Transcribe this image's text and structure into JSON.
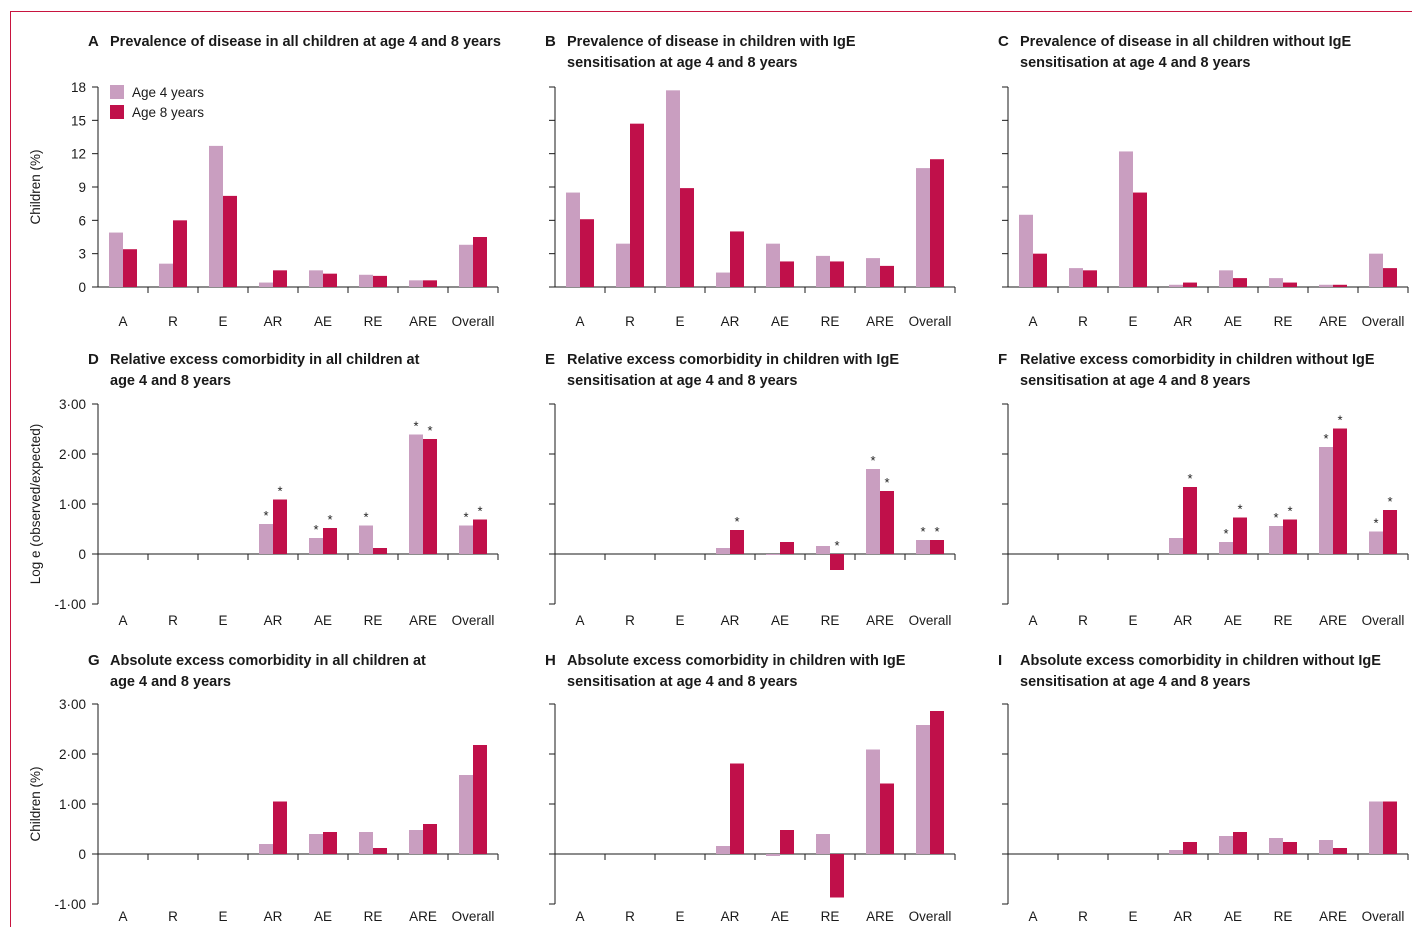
{
  "figure": {
    "colors": {
      "age4": "#c99ec0",
      "age8": "#c0104a",
      "accent_line": "#c8143f"
    },
    "categories": [
      "A",
      "R",
      "E",
      "AR",
      "AE",
      "RE",
      "ARE",
      "Overall"
    ],
    "legend": [
      "Age 4 years",
      "Age 8 years"
    ]
  },
  "chart_data": [
    {
      "type": "bar",
      "letter": "A",
      "title": [
        "Prevalence of disease in all children at age 4 and 8 years"
      ],
      "ylabel": "Children (%)",
      "ylim": [
        0,
        18
      ],
      "yticks": [
        0,
        3,
        6,
        9,
        12,
        15,
        18
      ],
      "ytick_labels": [
        "0",
        "3",
        "6",
        "9",
        "12",
        "15",
        "18"
      ],
      "show_legend": true,
      "categories": [
        "A",
        "R",
        "E",
        "AR",
        "AE",
        "RE",
        "ARE",
        "Overall"
      ],
      "series": [
        {
          "name": "Age 4 years",
          "values": [
            4.9,
            2.1,
            12.7,
            0.4,
            1.5,
            1.1,
            0.6,
            3.8
          ]
        },
        {
          "name": "Age 8 years",
          "values": [
            3.4,
            6.0,
            8.2,
            1.5,
            1.2,
            1.0,
            0.6,
            4.5
          ]
        }
      ]
    },
    {
      "type": "bar",
      "letter": "B",
      "title": [
        "Prevalence of disease in children with IgE",
        "sensitisation at age 4 and 8 years"
      ],
      "ylabel": "",
      "ylim": [
        0,
        18
      ],
      "yticks": [
        0,
        3,
        6,
        9,
        12,
        15,
        18
      ],
      "ytick_labels": [
        "",
        "",
        "",
        "",
        "",
        "",
        ""
      ],
      "categories": [
        "A",
        "R",
        "E",
        "AR",
        "AE",
        "RE",
        "ARE",
        "Overall"
      ],
      "series": [
        {
          "name": "Age 4 years",
          "values": [
            8.5,
            3.9,
            17.7,
            1.3,
            3.9,
            2.8,
            2.6,
            10.7
          ]
        },
        {
          "name": "Age 8 years",
          "values": [
            6.1,
            14.7,
            8.9,
            5.0,
            2.3,
            2.3,
            1.9,
            11.5
          ]
        }
      ]
    },
    {
      "type": "bar",
      "letter": "C",
      "title": [
        "Prevalence of disease in all children without IgE",
        "sensitisation at age 4 and 8 years"
      ],
      "ylabel": "",
      "ylim": [
        0,
        18
      ],
      "yticks": [
        0,
        3,
        6,
        9,
        12,
        15,
        18
      ],
      "ytick_labels": [
        "",
        "",
        "",
        "",
        "",
        "",
        ""
      ],
      "categories": [
        "A",
        "R",
        "E",
        "AR",
        "AE",
        "RE",
        "ARE",
        "Overall"
      ],
      "series": [
        {
          "name": "Age 4 years",
          "values": [
            6.5,
            1.7,
            12.2,
            0.2,
            1.5,
            0.8,
            0.2,
            3.0
          ]
        },
        {
          "name": "Age 8 years",
          "values": [
            3.0,
            1.5,
            8.5,
            0.4,
            0.8,
            0.4,
            0.2,
            1.7
          ]
        }
      ]
    },
    {
      "type": "bar",
      "letter": "D",
      "title": [
        "Relative excess comorbidity in all children at",
        "age 4 and 8 years"
      ],
      "ylabel": "Log e (observed/expected)",
      "ylim": [
        -1,
        3
      ],
      "yticks": [
        -1,
        0,
        1,
        2,
        3
      ],
      "ytick_labels": [
        "-1·00",
        "0",
        "1·00",
        "2·00",
        "3·00"
      ],
      "categories": [
        "A",
        "R",
        "E",
        "AR",
        "AE",
        "RE",
        "ARE",
        "Overall"
      ],
      "series": [
        {
          "name": "Age 4 years",
          "values": [
            0,
            0,
            0,
            0.6,
            0.32,
            0.57,
            2.39,
            0.57
          ],
          "stars": [
            false,
            false,
            false,
            true,
            true,
            true,
            true,
            true
          ]
        },
        {
          "name": "Age 8 years",
          "values": [
            0,
            0,
            0,
            1.09,
            0.52,
            0.12,
            2.3,
            0.69
          ],
          "stars": [
            false,
            false,
            false,
            true,
            true,
            false,
            true,
            true
          ]
        }
      ]
    },
    {
      "type": "bar",
      "letter": "E",
      "title": [
        "Relative excess comorbidity in children with IgE",
        "sensitisation at age 4 and 8 years"
      ],
      "ylabel": "",
      "ylim": [
        -1,
        3
      ],
      "yticks": [
        -1,
        0,
        1,
        2,
        3
      ],
      "ytick_labels": [
        "",
        "",
        "",
        "",
        ""
      ],
      "categories": [
        "A",
        "R",
        "E",
        "AR",
        "AE",
        "RE",
        "ARE",
        "Overall"
      ],
      "series": [
        {
          "name": "Age 4 years",
          "values": [
            0,
            0,
            0,
            0.12,
            -0.02,
            0.16,
            1.7,
            0.28
          ],
          "stars": [
            false,
            false,
            false,
            false,
            false,
            false,
            true,
            true
          ]
        },
        {
          "name": "Age 8 years",
          "values": [
            0,
            0,
            0,
            0.48,
            0.24,
            -0.32,
            1.26,
            0.28
          ],
          "stars": [
            false,
            false,
            false,
            true,
            false,
            true,
            true,
            true
          ]
        }
      ]
    },
    {
      "type": "bar",
      "letter": "F",
      "title": [
        "Relative excess comorbidity in children without IgE",
        "sensitisation at age 4 and 8 years"
      ],
      "ylabel": "",
      "ylim": [
        -1,
        3
      ],
      "yticks": [
        -1,
        0,
        1,
        2,
        3
      ],
      "ytick_labels": [
        "",
        "",
        "",
        "",
        ""
      ],
      "categories": [
        "A",
        "R",
        "E",
        "AR",
        "AE",
        "RE",
        "ARE",
        "Overall"
      ],
      "series": [
        {
          "name": "Age 4 years",
          "values": [
            0,
            0,
            0,
            0.32,
            0.24,
            0.56,
            2.14,
            0.45
          ],
          "stars": [
            false,
            false,
            false,
            false,
            true,
            true,
            true,
            true
          ]
        },
        {
          "name": "Age 8 years",
          "values": [
            0,
            0,
            0,
            1.34,
            0.73,
            0.69,
            2.51,
            0.88
          ],
          "stars": [
            false,
            false,
            false,
            true,
            true,
            true,
            true,
            true
          ]
        }
      ]
    },
    {
      "type": "bar",
      "letter": "G",
      "title": [
        "Absolute excess comorbidity in all children at",
        "age 4 and 8 years"
      ],
      "ylabel": "Children (%)",
      "ylim": [
        -1,
        3
      ],
      "yticks": [
        -1,
        0,
        1,
        2,
        3
      ],
      "ytick_labels": [
        "-1·00",
        "0",
        "1·00",
        "2·00",
        "3·00"
      ],
      "categories": [
        "A",
        "R",
        "E",
        "AR",
        "AE",
        "RE",
        "ARE",
        "Overall"
      ],
      "series": [
        {
          "name": "Age 4 years",
          "values": [
            0,
            0,
            0,
            0.2,
            0.4,
            0.44,
            0.48,
            1.58
          ]
        },
        {
          "name": "Age 8 years",
          "values": [
            0,
            0,
            0,
            1.05,
            0.44,
            0.12,
            0.6,
            2.18
          ]
        }
      ]
    },
    {
      "type": "bar",
      "letter": "H",
      "title": [
        "Absolute excess comorbidity in children with IgE",
        "sensitisation at age 4 and 8 years"
      ],
      "ylabel": "",
      "ylim": [
        -1,
        3
      ],
      "yticks": [
        -1,
        0,
        1,
        2,
        3
      ],
      "ytick_labels": [
        "",
        "",
        "",
        "",
        ""
      ],
      "categories": [
        "A",
        "R",
        "E",
        "AR",
        "AE",
        "RE",
        "ARE",
        "Overall"
      ],
      "series": [
        {
          "name": "Age 4 years",
          "values": [
            0,
            0,
            0,
            0.16,
            -0.04,
            0.4,
            2.09,
            2.58
          ]
        },
        {
          "name": "Age 8 years",
          "values": [
            0,
            0,
            0,
            1.81,
            0.48,
            -0.87,
            1.41,
            2.86
          ]
        }
      ]
    },
    {
      "type": "bar",
      "letter": "I",
      "title": [
        "Absolute excess comorbidity in children without IgE",
        "sensitisation at age 4 and 8 years"
      ],
      "ylabel": "",
      "ylim": [
        -1,
        3
      ],
      "yticks": [
        -1,
        0,
        1,
        2,
        3
      ],
      "ytick_labels": [
        "",
        "",
        "",
        "",
        ""
      ],
      "categories": [
        "A",
        "R",
        "E",
        "AR",
        "AE",
        "RE",
        "ARE",
        "Overall"
      ],
      "series": [
        {
          "name": "Age 4 years",
          "values": [
            0,
            0,
            0,
            0.08,
            0.36,
            0.32,
            0.28,
            1.05
          ]
        },
        {
          "name": "Age 8 years",
          "values": [
            0,
            0,
            0,
            0.24,
            0.44,
            0.24,
            0.12,
            1.05
          ]
        }
      ]
    }
  ]
}
